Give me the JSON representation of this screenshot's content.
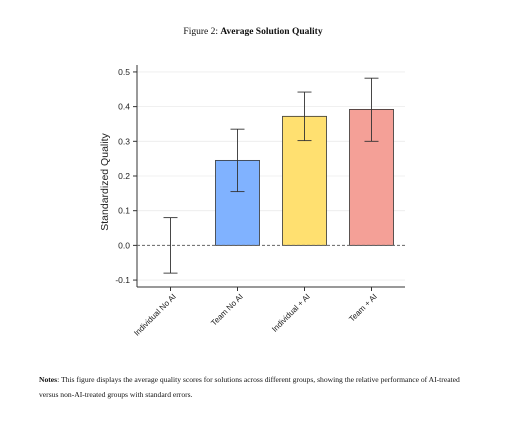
{
  "figure": {
    "title_prefix": "Figure 2:",
    "title_bold": "Average Solution Quality"
  },
  "notes": {
    "label": "Notes",
    "text": ": This figure displays the average quality scores for solutions across different groups, showing the relative performance of AI-treated versus non-AI-treated groups with standard errors."
  },
  "chart_data": {
    "type": "bar",
    "title": "Average Solution Quality",
    "ylabel": "Standardized Quality",
    "xlabel": "",
    "ylim": [
      -0.12,
      0.52
    ],
    "yticks": [
      -0.1,
      0.0,
      0.1,
      0.2,
      0.3,
      0.4,
      0.5
    ],
    "ytick_labels": [
      "-0.1",
      "0.0",
      "0.1",
      "0.2",
      "0.3",
      "0.4",
      "0.5"
    ],
    "categories": [
      "Individual No AI",
      "Team No AI",
      "Individual + AI",
      "Team + AI"
    ],
    "values": [
      0.0,
      0.245,
      0.372,
      0.392
    ],
    "error_low": [
      -0.08,
      0.155,
      0.302,
      0.3
    ],
    "error_high": [
      0.08,
      0.335,
      0.442,
      0.482
    ],
    "colors": [
      "#ffffff",
      "#80b2ff",
      "#ffe070",
      "#f4a097"
    ],
    "edge_color": "#333333",
    "baseline": 0.0,
    "baseline_style": "dashed",
    "grid": true
  }
}
